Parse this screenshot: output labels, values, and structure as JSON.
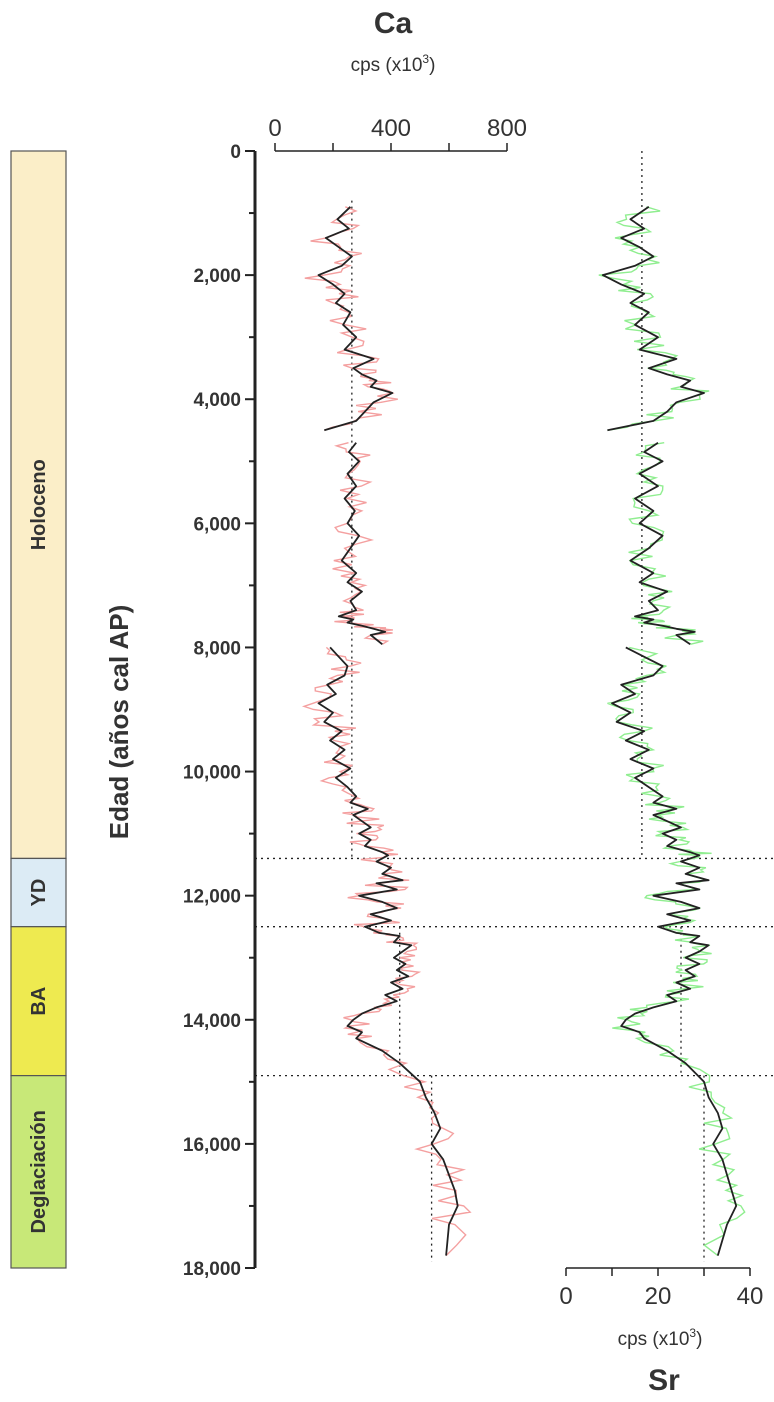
{
  "chart_data": {
    "type": "line",
    "y_axis": {
      "label": "Edad (años cal AP)",
      "range": [
        0,
        18000
      ],
      "ticks": [
        "0",
        "2,000",
        "4,000",
        "6,000",
        "8,000",
        "10,000",
        "12,000",
        "14,000",
        "16,000",
        "18,000"
      ],
      "reversed": true
    },
    "ca_panel": {
      "title": "Ca",
      "unit_prefix": "cps (x10",
      "unit_exp": "3",
      "unit_suffix": ")",
      "range": [
        0,
        800
      ],
      "ticks": [
        "0",
        "400",
        "800"
      ],
      "axis_position": "top",
      "raw_color": "#f4a0a0",
      "smooth_color": "#222222",
      "mean_lines": [
        {
          "from": 800,
          "to": 11400,
          "value": 265
        },
        {
          "from": 12500,
          "to": 14900,
          "value": 430
        },
        {
          "from": 14900,
          "to": 17900,
          "value": 540
        }
      ]
    },
    "sr_panel": {
      "title": "Sr",
      "unit_prefix": "cps (x10",
      "unit_exp": "3",
      "unit_suffix": ")",
      "range": [
        0,
        40
      ],
      "ticks": [
        "0",
        "20",
        "40"
      ],
      "axis_position": "bottom",
      "raw_color": "#90ee90",
      "smooth_color": "#222222",
      "mean_lines": [
        {
          "from": 0,
          "to": 11400,
          "value": 16.5
        },
        {
          "from": 12500,
          "to": 14900,
          "value": 25
        },
        {
          "from": 14900,
          "to": 17900,
          "value": 30
        }
      ]
    },
    "boundaries": [
      11400,
      12500,
      14900
    ],
    "periods": [
      {
        "label": "Holoceno",
        "from": 0,
        "to": 11400,
        "color": "#fbeec8"
      },
      {
        "label": "YD",
        "from": 11400,
        "to": 12500,
        "color": "#dcebf5"
      },
      {
        "label": "BA",
        "from": 12500,
        "to": 14900,
        "color": "#eeea50"
      },
      {
        "label": "Deglaciación",
        "from": 14900,
        "to": 18000,
        "color": "#c8e878"
      }
    ],
    "series": [
      {
        "name": "Ca",
        "segments": [
          {
            "x": [
              260,
              215,
              255,
              175,
              220,
              265,
              230,
              150,
              200,
              240,
              210,
              260,
              235,
              280,
              240,
              340,
              270,
              300,
              350,
              330,
              405,
              340,
              310,
              280,
              170
            ],
            "y": [
              900,
              1100,
              1250,
              1400,
              1550,
              1700,
              1850,
              2000,
              2150,
              2300,
              2450,
              2600,
              2800,
              3000,
              3200,
              3350,
              3500,
              3600,
              3700,
              3800,
              3900,
              4050,
              4200,
              4350,
              4500
            ]
          },
          {
            "x": [
              280,
              255,
              290,
              250,
              280,
              240,
              275,
              250,
              290,
              260,
              230,
              280,
              250,
              300,
              260,
              280,
              220,
              270,
              250,
              300,
              340,
              380,
              330,
              370
            ],
            "y": [
              4700,
              4850,
              5000,
              5200,
              5400,
              5600,
              5800,
              6000,
              6200,
              6400,
              6600,
              6800,
              6950,
              7100,
              7250,
              7400,
              7500,
              7550,
              7600,
              7650,
              7700,
              7750,
              7800,
              7950
            ]
          },
          {
            "x": [
              190,
              220,
              250,
              240,
              180,
              210,
              150,
              200,
              170,
              230,
              190,
              240,
              200,
              260,
              210,
              250,
              280,
              260,
              320,
              270,
              300,
              330,
              290,
              330,
              310,
              370,
              390,
              350,
              400,
              370,
              440,
              350,
              420,
              290,
              370,
              420,
              330,
              400,
              310,
              360,
              430,
              410,
              470,
              440,
              410,
              450,
              420,
              460,
              400,
              440,
              380,
              420,
              350,
              300,
              270,
              250,
              300,
              280,
              370,
              430,
              500,
              520,
              550,
              570,
              540,
              580,
              600,
              620,
              630,
              600,
              590
            ],
            "y": [
              8000,
              8150,
              8300,
              8450,
              8600,
              8750,
              8900,
              9050,
              9200,
              9350,
              9500,
              9650,
              9800,
              9950,
              10100,
              10250,
              10400,
              10500,
              10600,
              10700,
              10800,
              10900,
              11000,
              11100,
              11200,
              11300,
              11350,
              11450,
              11550,
              11650,
              11750,
              11800,
              11900,
              12000,
              12100,
              12200,
              12300,
              12400,
              12500,
              12600,
              12650,
              12750,
              12800,
              12900,
              13000,
              13100,
              13200,
              13300,
              13400,
              13500,
              13600,
              13700,
              13800,
              13900,
              14000,
              14100,
              14200,
              14300,
              14500,
              14700,
              15000,
              15250,
              15500,
              15750,
              16000,
              16250,
              16500,
              16750,
              17000,
              17300,
              17800
            ]
          }
        ]
      },
      {
        "name": "Sr",
        "segments": [
          {
            "x": [
              18,
              14,
              17,
              12,
              16,
              19,
              15,
              8,
              12,
              17,
              14,
              18,
              15,
              20,
              16,
              24,
              18,
              22,
              27,
              25,
              30,
              24,
              22,
              19,
              9
            ],
            "y": [
              900,
              1100,
              1250,
              1400,
              1550,
              1700,
              1850,
              2000,
              2150,
              2300,
              2450,
              2600,
              2800,
              3000,
              3200,
              3350,
              3500,
              3600,
              3700,
              3800,
              3900,
              4050,
              4200,
              4350,
              4500
            ]
          },
          {
            "x": [
              20,
              17,
              21,
              16,
              20,
              15,
              19,
              16,
              21,
              18,
              14,
              19,
              16,
              22,
              18,
              20,
              15,
              19,
              17,
              21,
              24,
              28,
              24,
              27
            ],
            "y": [
              4700,
              4850,
              5000,
              5200,
              5400,
              5600,
              5800,
              6000,
              6200,
              6400,
              6600,
              6800,
              6950,
              7100,
              7250,
              7400,
              7500,
              7550,
              7600,
              7650,
              7700,
              7750,
              7800,
              7950
            ]
          },
          {
            "x": [
              13,
              17,
              21,
              19,
              12,
              15,
              10,
              14,
              11,
              17,
              13,
              18,
              14,
              19,
              15,
              18,
              21,
              19,
              24,
              19,
              22,
              25,
              21,
              24,
              22,
              27,
              29,
              25,
              29,
              26,
              31,
              24,
              29,
              19,
              25,
              29,
              22,
              27,
              20,
              24,
              29,
              27,
              31,
              29,
              26,
              29,
              26,
              28,
              24,
              27,
              22,
              24,
              19,
              15,
              13,
              12,
              16,
              17,
              22,
              26,
              30,
              31,
              33,
              34,
              32,
              34,
              35,
              36,
              37,
              35,
              33
            ],
            "y": [
              8000,
              8150,
              8300,
              8450,
              8600,
              8750,
              8900,
              9050,
              9200,
              9350,
              9500,
              9650,
              9800,
              9950,
              10100,
              10250,
              10400,
              10500,
              10600,
              10700,
              10800,
              10900,
              11000,
              11100,
              11200,
              11300,
              11350,
              11450,
              11550,
              11650,
              11750,
              11800,
              11900,
              12000,
              12100,
              12200,
              12300,
              12400,
              12500,
              12600,
              12650,
              12750,
              12800,
              12900,
              13000,
              13100,
              13200,
              13300,
              13400,
              13500,
              13600,
              13700,
              13800,
              13900,
              14000,
              14100,
              14200,
              14300,
              14500,
              14700,
              15000,
              15250,
              15500,
              15750,
              16000,
              16250,
              16500,
              16750,
              17000,
              17300,
              17800
            ]
          }
        ]
      }
    ]
  }
}
